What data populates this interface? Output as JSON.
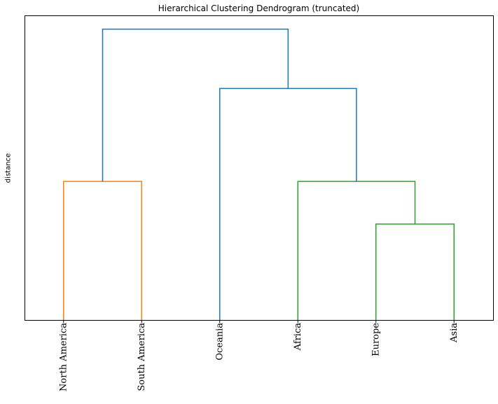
{
  "chart_data": {
    "type": "dendrogram",
    "title": "Hierarchical Clustering Dendrogram (truncated)",
    "xlabel": "",
    "ylabel": "distance",
    "grid": false,
    "leaves": [
      "North America",
      "South America",
      "Oceania",
      "Africa",
      "Europe",
      "Asia"
    ],
    "ylim": [
      0,
      10
    ],
    "links": [
      {
        "left": 0,
        "right": 1,
        "left_height": 0,
        "right_height": 0,
        "height": 4.55,
        "color": "#ff7f0e"
      },
      {
        "left": 4,
        "right": 5,
        "left_height": 0,
        "right_height": 0,
        "height": 3.15,
        "color": "#2ca02c"
      },
      {
        "left": 3,
        "right": 4.5,
        "left_height": 0,
        "right_height": 3.15,
        "height": 4.55,
        "color": "#2ca02c"
      },
      {
        "left": 2,
        "right": 3.75,
        "left_height": 0,
        "right_height": 4.55,
        "height": 7.6,
        "color": "#1f77b4"
      },
      {
        "left": 0.5,
        "right": 2.875,
        "left_height": 4.55,
        "right_height": 7.6,
        "height": 9.55,
        "color": "#1f77b4"
      }
    ],
    "colors": {
      "cluster_1": "#ff7f0e",
      "cluster_2": "#2ca02c",
      "above_threshold": "#1f77b4",
      "axes": "#000000"
    }
  }
}
